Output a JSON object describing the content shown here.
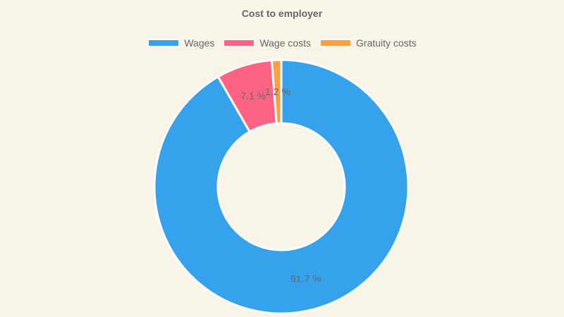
{
  "chart_data": {
    "type": "pie",
    "subtype": "doughnut",
    "title": "Cost to employer",
    "categories": [
      "Wages",
      "Wage costs",
      "Gratuity costs"
    ],
    "values": [
      91.7,
      7.1,
      1.2
    ],
    "labels": [
      "91.7 %",
      "7.1 %",
      "1.2 %"
    ],
    "colors": [
      "#36a2eb",
      "#ff6384",
      "#ff9f40"
    ],
    "legend_position": "top"
  },
  "title": "Cost to employer",
  "legend": [
    {
      "label": "Wages",
      "color": "#36a2eb"
    },
    {
      "label": "Wage costs",
      "color": "#ff6384"
    },
    {
      "label": "Gratuity costs",
      "color": "#ff9f40"
    }
  ]
}
